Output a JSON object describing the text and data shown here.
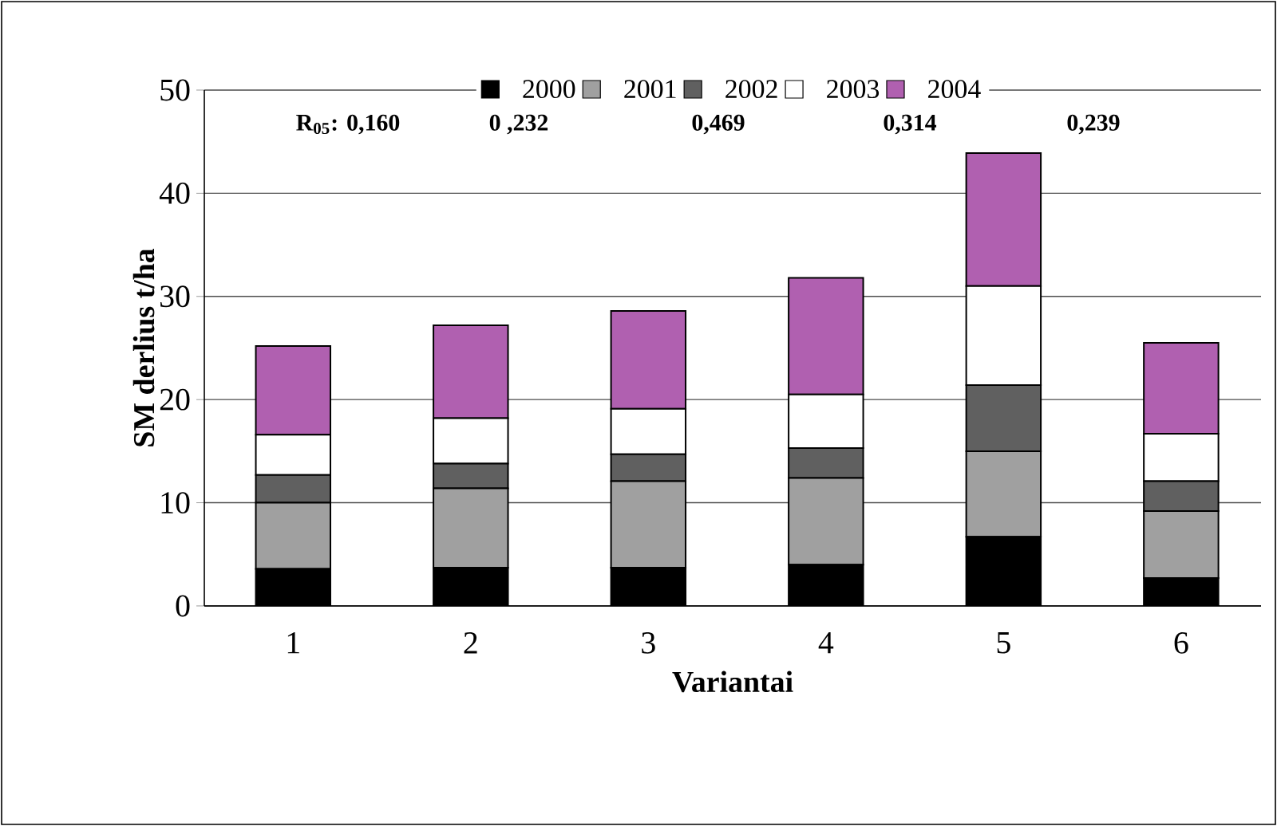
{
  "chart_data": {
    "type": "bar",
    "stacked": true,
    "xlabel": "Variantai",
    "ylabel": "SM derlius t/ha",
    "categories": [
      "1",
      "2",
      "3",
      "4",
      "5",
      "6"
    ],
    "series": [
      {
        "name": "2000",
        "color": "#000000",
        "values": [
          3.6,
          3.7,
          3.7,
          4.0,
          6.7,
          2.7
        ]
      },
      {
        "name": "2001",
        "color": "#a0a0a0",
        "values": [
          6.4,
          7.7,
          8.4,
          8.4,
          8.3,
          6.5
        ]
      },
      {
        "name": "2002",
        "color": "#606060",
        "values": [
          2.7,
          2.4,
          2.6,
          2.9,
          6.4,
          2.9
        ]
      },
      {
        "name": "2003",
        "color": "#ffffff",
        "values": [
          3.9,
          4.4,
          4.4,
          5.2,
          9.6,
          4.6
        ]
      },
      {
        "name": "2004",
        "color": "#b060b0",
        "values": [
          8.6,
          9.0,
          9.5,
          11.3,
          12.9,
          8.8
        ]
      }
    ],
    "ylim": [
      0,
      50
    ],
    "yticks": [
      0,
      10,
      20,
      30,
      40,
      50
    ],
    "grid": "y",
    "legend": "top",
    "annotations": [
      "R$_{05}$: 0,160",
      "0 ,232",
      "0,469",
      "0,314",
      "0,239"
    ]
  }
}
